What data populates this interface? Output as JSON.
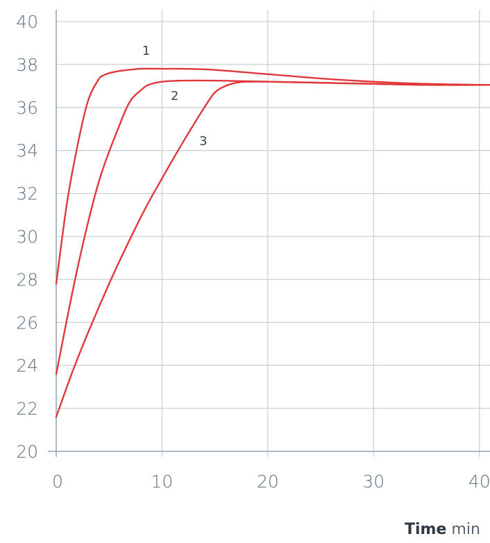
{
  "chart_data": {
    "type": "line",
    "title": "",
    "xlabel": "Time",
    "xlabel_unit": "min",
    "ylabel": "",
    "xlim": [
      0,
      41
    ],
    "ylim": [
      20,
      40
    ],
    "grid": true,
    "legend": "none",
    "x_ticks": [
      0,
      10,
      20,
      30,
      40
    ],
    "y_ticks": [
      20,
      22,
      24,
      26,
      28,
      30,
      32,
      34,
      36,
      38,
      40
    ],
    "line_color": "#e0393b",
    "series": [
      {
        "name": "1",
        "x": [
          0,
          1,
          2,
          3,
          4,
          4.5,
          5,
          6,
          8,
          10,
          12,
          15,
          20,
          25,
          30,
          35,
          41
        ],
        "y": [
          27.8,
          31.5,
          34.2,
          36.3,
          37.3,
          37.5,
          37.6,
          37.7,
          37.8,
          37.8,
          37.8,
          37.75,
          37.55,
          37.35,
          37.2,
          37.1,
          37.05
        ]
      },
      {
        "name": "2",
        "x": [
          0,
          2,
          4,
          6,
          7,
          8,
          8.5,
          9,
          10,
          12,
          15,
          20,
          25,
          30,
          35,
          41
        ],
        "y": [
          23.6,
          28.5,
          32.5,
          35.2,
          36.3,
          36.8,
          37.0,
          37.1,
          37.2,
          37.25,
          37.25,
          37.2,
          37.15,
          37.1,
          37.05,
          37.05
        ]
      },
      {
        "name": "3",
        "x": [
          0,
          2,
          5,
          8,
          10,
          12,
          14,
          15,
          16,
          17,
          18,
          20,
          25,
          30,
          35,
          41
        ],
        "y": [
          21.6,
          24.3,
          27.8,
          30.9,
          32.7,
          34.4,
          36.0,
          36.7,
          37.0,
          37.15,
          37.2,
          37.2,
          37.15,
          37.1,
          37.05,
          37.05
        ]
      }
    ]
  }
}
